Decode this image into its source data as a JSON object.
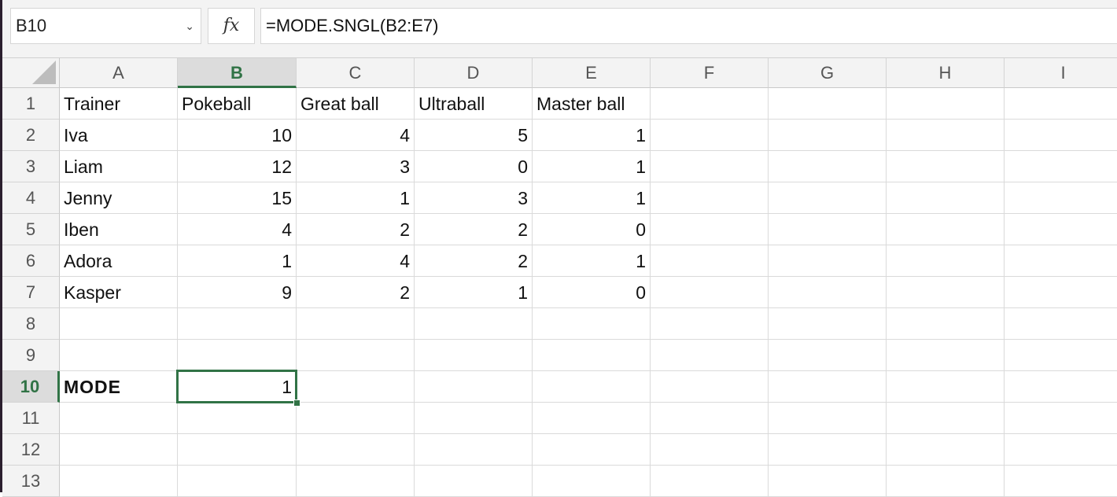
{
  "formula_bar": {
    "name_box": "B10",
    "fx_label": "fx",
    "formula": "=MODE.SNGL(B2:E7)"
  },
  "columns": [
    "A",
    "B",
    "C",
    "D",
    "E",
    "F",
    "G",
    "H",
    "I"
  ],
  "rows": [
    "1",
    "2",
    "3",
    "4",
    "5",
    "6",
    "7",
    "8",
    "9",
    "10",
    "11",
    "12",
    "13"
  ],
  "selected": {
    "column": "B",
    "row": "10",
    "accent": "#317346"
  },
  "cells": [
    [
      "Trainer",
      "Pokeball",
      "Great ball",
      "Ultraball",
      "Master ball"
    ],
    [
      "Iva",
      "10",
      "4",
      "5",
      "1"
    ],
    [
      "Liam",
      "12",
      "3",
      "0",
      "1"
    ],
    [
      "Jenny",
      "15",
      "1",
      "3",
      "1"
    ],
    [
      "Iben",
      "4",
      "2",
      "2",
      "0"
    ],
    [
      "Adora",
      "1",
      "4",
      "2",
      "1"
    ],
    [
      "Kasper",
      "9",
      "2",
      "1",
      "0"
    ],
    [],
    [],
    [
      "MODE",
      "1"
    ],
    [],
    [],
    []
  ]
}
